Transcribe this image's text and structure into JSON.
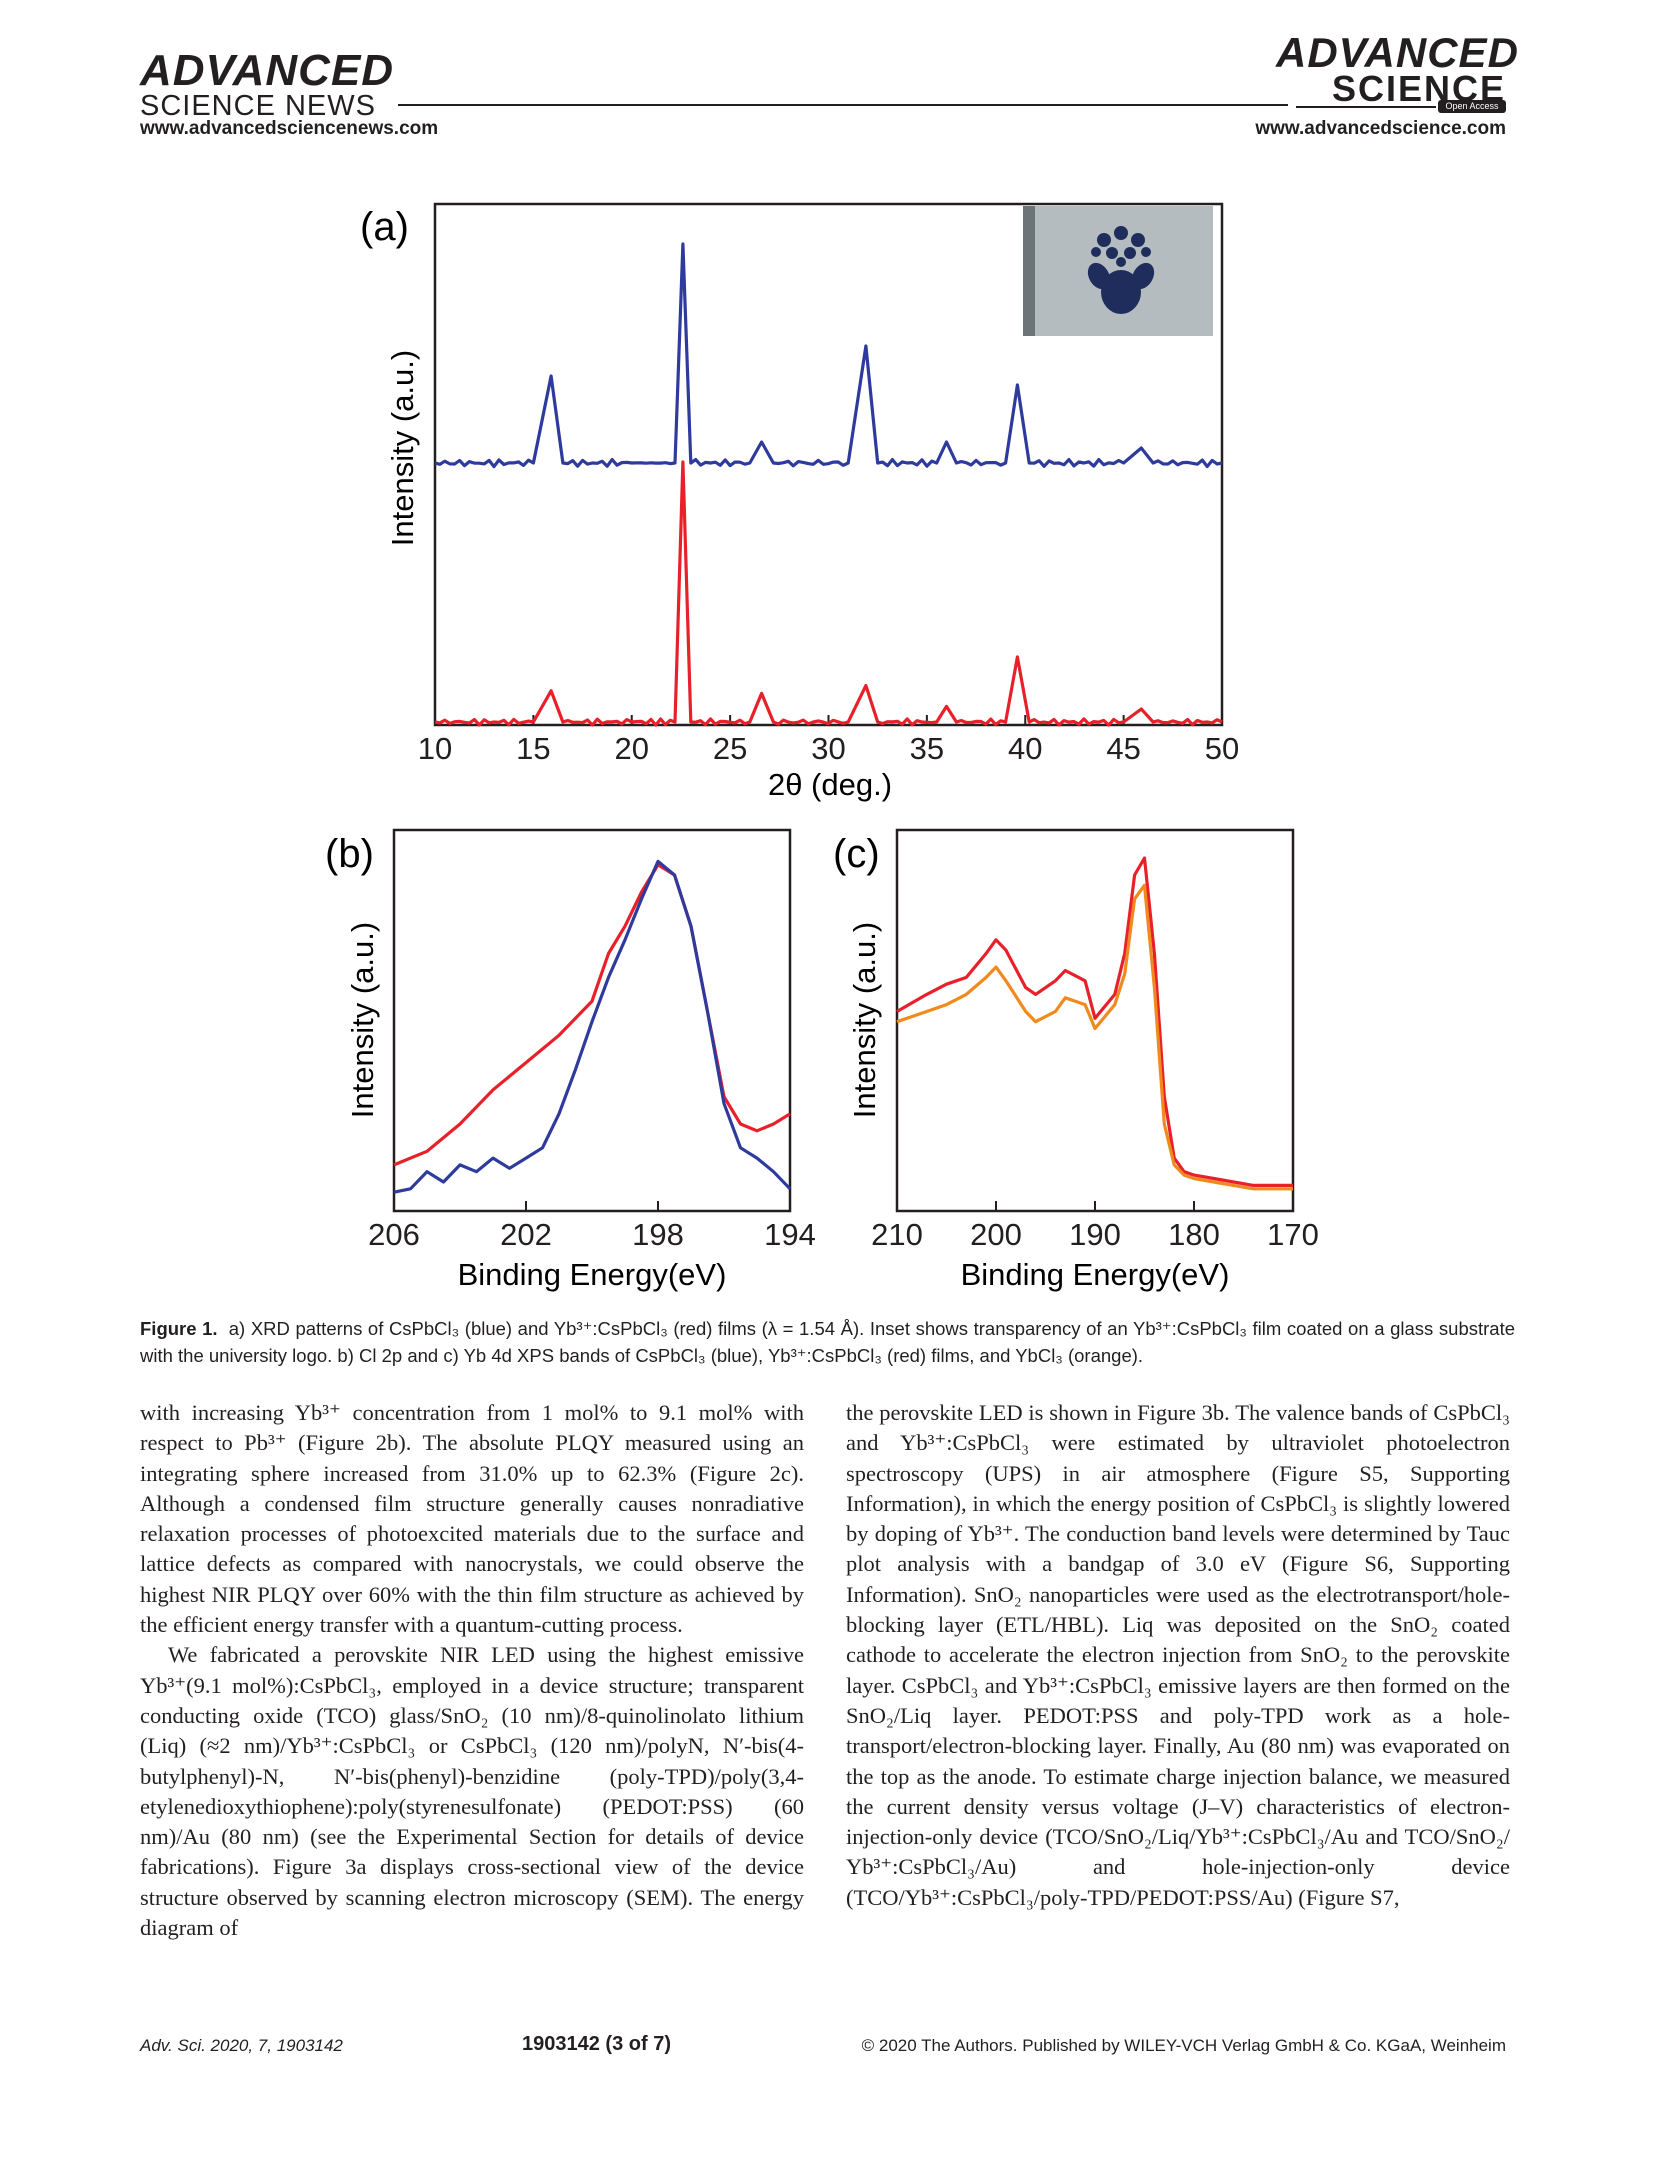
{
  "header": {
    "left_brand_line1": "ADVANCED",
    "left_brand_line2": "SCIENCE NEWS",
    "left_url": "www.advancedsciencenews.com",
    "right_brand_line1": "ADVANCED",
    "right_brand_line2": "SCIENCE",
    "right_badge": "Open Access",
    "right_url": "www.advancedscience.com"
  },
  "figure": {
    "panel_a": {
      "label": "(a)",
      "ylabel": "Intensity (a.u.)",
      "xlabel": "2θ (deg.)",
      "inset_description_color": "#1f2d5c"
    },
    "panel_b": {
      "label": "(b)",
      "ylabel": "Intensity (a.u.)",
      "xlabel": "Binding Energy(eV)"
    },
    "panel_c": {
      "label": "(c)",
      "ylabel": "Intensity (a.u.)",
      "xlabel": "Binding Energy(eV)"
    }
  },
  "chart_data": [
    {
      "type": "line",
      "panel": "a",
      "xlabel": "2θ (deg.)",
      "ylabel": "Intensity (a.u.)",
      "xlim": [
        10,
        50
      ],
      "x_ticks": [
        10,
        15,
        20,
        25,
        30,
        35,
        40,
        45,
        50
      ],
      "series": [
        {
          "color": "#2e3a9c",
          "x": [
            10,
            15,
            15.9,
            16.5,
            20,
            22.2,
            22.6,
            23.0,
            26,
            26.6,
            27.2,
            31,
            31.9,
            32.5,
            35.5,
            36,
            36.5,
            39,
            39.6,
            40.2,
            45,
            45.9,
            46.5,
            50
          ],
          "y": [
            0,
            0,
            0.29,
            0,
            0,
            0,
            0.73,
            0,
            0,
            0.07,
            0,
            0,
            0.39,
            0,
            0,
            0.07,
            0,
            0,
            0.26,
            0,
            0,
            0.05,
            0,
            0
          ]
        },
        {
          "color": "#e8202a",
          "x": [
            10,
            15,
            15.9,
            16.5,
            20,
            22.2,
            22.6,
            23.0,
            26,
            26.6,
            27.2,
            31,
            31.9,
            32.5,
            35.5,
            36,
            36.5,
            39,
            39.6,
            40.2,
            45,
            45.9,
            46.5,
            50
          ],
          "y": [
            0,
            0,
            0.12,
            0,
            0,
            0,
            1.0,
            0,
            0,
            0.11,
            0,
            0,
            0.14,
            0,
            0,
            0.06,
            0,
            0,
            0.25,
            0,
            0,
            0.05,
            0,
            0
          ]
        }
      ]
    },
    {
      "type": "line",
      "panel": "b",
      "xlabel": "Binding Energy(eV)",
      "ylabel": "Intensity (a.u.)",
      "xlim": [
        206,
        194
      ],
      "x_ticks": [
        206,
        202,
        198,
        194
      ],
      "series": [
        {
          "color": "#e8202a",
          "x": [
            206,
            205,
            204,
            203,
            202,
            201,
            200,
            199.5,
            199,
            198.5,
            198,
            197.5,
            197,
            196.5,
            196,
            195.5,
            195,
            194.5,
            194
          ],
          "y": [
            0.1,
            0.14,
            0.22,
            0.32,
            0.4,
            0.48,
            0.58,
            0.72,
            0.8,
            0.9,
            0.98,
            0.95,
            0.8,
            0.55,
            0.3,
            0.22,
            0.2,
            0.22,
            0.25
          ]
        },
        {
          "color": "#2e3a9c",
          "x": [
            206,
            205.5,
            205,
            204.5,
            204,
            203.5,
            203,
            202.5,
            202,
            201.5,
            201,
            200.5,
            200,
            199.5,
            199,
            198.5,
            198,
            197.5,
            197,
            196.5,
            196,
            195.5,
            195,
            194.5,
            194
          ],
          "y": [
            0.02,
            0.03,
            0.08,
            0.05,
            0.1,
            0.08,
            0.12,
            0.09,
            0.12,
            0.15,
            0.25,
            0.38,
            0.52,
            0.65,
            0.76,
            0.88,
            0.99,
            0.95,
            0.8,
            0.55,
            0.28,
            0.15,
            0.12,
            0.08,
            0.03
          ]
        }
      ]
    },
    {
      "type": "line",
      "panel": "c",
      "xlabel": "Binding Energy(eV)",
      "ylabel": "Intensity (a.u.)",
      "xlim": [
        210,
        170
      ],
      "x_ticks": [
        210,
        200,
        190,
        180,
        170
      ],
      "series": [
        {
          "color": "#e8202a",
          "x": [
            210,
            207,
            205,
            203,
            201,
            200,
            199,
            197,
            196,
            194,
            193,
            191,
            190,
            188,
            187,
            186,
            185,
            184,
            183,
            182,
            181,
            180,
            178,
            176,
            174,
            172,
            170
          ],
          "y": [
            0.55,
            0.6,
            0.63,
            0.65,
            0.72,
            0.76,
            0.73,
            0.62,
            0.6,
            0.64,
            0.67,
            0.64,
            0.53,
            0.6,
            0.72,
            0.95,
            1.0,
            0.72,
            0.3,
            0.12,
            0.08,
            0.07,
            0.06,
            0.05,
            0.04,
            0.04,
            0.04
          ]
        },
        {
          "color": "#f08a1e",
          "x": [
            210,
            207,
            205,
            203,
            201,
            200,
            199,
            197,
            196,
            194,
            193,
            191,
            190,
            188,
            187,
            186,
            185,
            184,
            183,
            182,
            181,
            180,
            178,
            176,
            174,
            172,
            170
          ],
          "y": [
            0.52,
            0.55,
            0.57,
            0.6,
            0.65,
            0.68,
            0.64,
            0.55,
            0.52,
            0.55,
            0.59,
            0.57,
            0.5,
            0.57,
            0.66,
            0.88,
            0.92,
            0.62,
            0.22,
            0.1,
            0.07,
            0.06,
            0.05,
            0.04,
            0.03,
            0.03,
            0.03
          ]
        }
      ]
    }
  ],
  "caption": {
    "figure_label": "Figure 1.",
    "text": "a) XRD patterns of CsPbCl₃ (blue) and Yb³⁺:CsPbCl₃ (red) films (λ = 1.54 Å). Inset shows transparency of an Yb³⁺:CsPbCl₃ film coated on a glass substrate with the university logo. b) Cl 2p and c) Yb 4d XPS bands of CsPbCl₃ (blue), Yb³⁺:CsPbCl₃ (red) films, and YbCl₃ (orange)."
  },
  "body": {
    "left_p1": "with increasing Yb³⁺ concentration from 1 mol% to 9.1 mol% with respect to Pb³⁺ (Figure 2b). The absolute PLQY measured using an integrating sphere increased from 31.0% up to 62.3% (Figure 2c). Although a condensed film structure generally causes nonradiative relaxation processes of photoexcited materials due to the surface and lattice defects as compared with nanocrystals, we could observe the highest NIR PLQY over 60% with the thin film structure as achieved by the efficient energy transfer with a quantum-cutting process.",
    "left_p2": "We fabricated a perovskite NIR LED using the highest emissive Yb³⁺(9.1 mol%):CsPbCl₃, employed in a device structure; transparent conducting oxide (TCO) glass/SnO₂ (10 nm)/8-quinolinolato lithium (Liq) (≈2 nm)/Yb³⁺:CsPbCl₃ or CsPbCl₃ (120 nm)/polyN, N′-bis(4-butylphenyl)-N, N′-bis(phenyl)-benzidine (poly-TPD)/poly(3,4-etylenedioxythiophene):poly(styrenesulfonate) (PEDOT:PSS) (60 nm)/Au (80 nm) (see the Experimental Section for details of device fabrications). Figure 3a displays cross-sectional view of the device structure observed by scanning electron microscopy (SEM). The energy diagram of",
    "right_p1": "the perovskite LED is shown in Figure 3b. The valence bands of CsPbCl₃ and Yb³⁺:CsPbCl₃ were estimated by ultraviolet photoelectron spectroscopy (UPS) in air atmosphere (Figure S5, Supporting Information), in which the energy position of CsPbCl₃ is slightly lowered by doping of Yb³⁺. The conduction band levels were determined by Tauc plot analysis with a bandgap of 3.0 eV (Figure S6, Supporting Information). SnO₂ nanoparticles were used as the electrotransport/hole-blocking layer (ETL/HBL). Liq was deposited on the SnO₂ coated cathode to accelerate the electron injection from SnO₂ to the perovskite layer. CsPbCl₃ and Yb³⁺:CsPbCl₃ emissive layers are then formed on the SnO₂/Liq layer. PEDOT:PSS and poly-TPD work as a hole-transport/electron-blocking layer. Finally, Au (80 nm) was evaporated on the top as the anode. To estimate charge injection balance, we measured the current density versus voltage (J–V) characteristics of electron-injection-only device (TCO/SnO₂/Liq/Yb³⁺:CsPbCl₃/Au and TCO/SnO₂/ Yb³⁺:CsPbCl₃/Au) and hole-injection-only device (TCO/Yb³⁺:CsPbCl₃/poly-TPD/PEDOT:PSS/Au) (Figure S7,"
  },
  "footer": {
    "journal": "Adv. Sci. 2020, 7, 1903142",
    "page": "1903142 (3 of 7)",
    "copyright": "© 2020 The Authors. Published by WILEY-VCH Verlag GmbH & Co. KGaA, Weinheim"
  },
  "colors": {
    "blue": "#2e3a9c",
    "red": "#e8202a",
    "orange": "#f08a1e",
    "text": "#231f20"
  }
}
